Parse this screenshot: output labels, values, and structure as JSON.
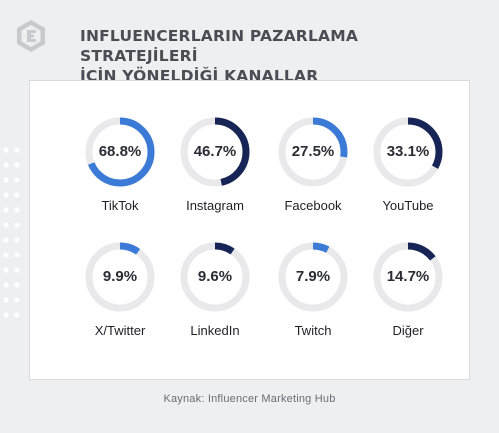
{
  "header": {
    "title_line1": "INFLUENCERLARIN PAZARLAMA STRATEJİLERİ",
    "title_line2": "İÇİN YÖNELDİĞİ KANALLAR"
  },
  "source": "Kaynak:  Influencer Marketing Hub",
  "colors": {
    "ring_track": "#e9e9ec",
    "light_blue": "#3b7ad6",
    "dark_navy": "#172556"
  },
  "chart_data": {
    "type": "donut",
    "title": "INFLUENCERLARIN PAZARLAMA STRATEJİLERİ İÇİN YÖNELDİĞİ KANALLAR",
    "categories": [
      "TikTok",
      "Instagram",
      "Facebook",
      "YouTube",
      "X/Twitter",
      "LinkedIn",
      "Twitch",
      "Diğer"
    ],
    "values": [
      68.8,
      46.7,
      27.5,
      33.1,
      9.9,
      9.6,
      7.9,
      14.7
    ],
    "value_labels": [
      "68.8%",
      "46.7%",
      "27.5%",
      "33.1%",
      "9.9%",
      "9.6%",
      "7.9%",
      "14.7%"
    ],
    "arc_colors": [
      "light_blue",
      "dark_navy",
      "light_blue",
      "dark_navy",
      "light_blue",
      "dark_navy",
      "light_blue",
      "dark_navy"
    ],
    "max": 100,
    "unit": "%"
  }
}
